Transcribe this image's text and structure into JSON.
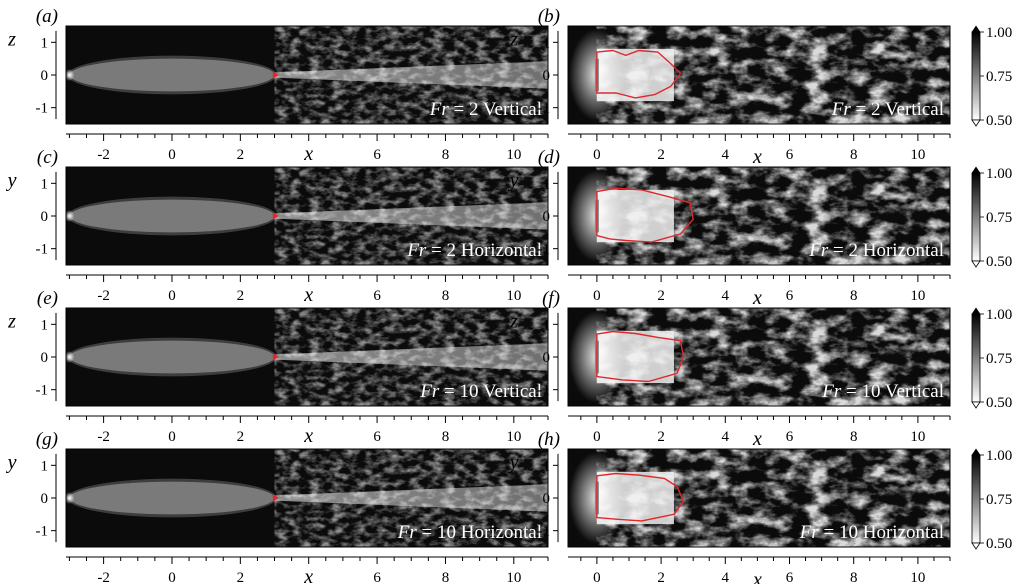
{
  "figure": {
    "panels": [
      {
        "letter": "(a)",
        "view": "wide",
        "vaxis": "z",
        "label_prefix": "Fr",
        "label_rest": " = 2 Vertical"
      },
      {
        "letter": "(b)",
        "view": "zoom",
        "vaxis": "z",
        "label_prefix": "Fr",
        "label_rest": " = 2 Vertical"
      },
      {
        "letter": "(c)",
        "view": "wide",
        "vaxis": "y",
        "label_prefix": "Fr",
        "label_rest": " = 2 Horizontal"
      },
      {
        "letter": "(d)",
        "view": "zoom",
        "vaxis": "y",
        "label_prefix": "Fr",
        "label_rest": " = 2 Horizontal"
      },
      {
        "letter": "(e)",
        "view": "wide",
        "vaxis": "z",
        "label_prefix": "Fr",
        "label_rest": " = 10 Vertical"
      },
      {
        "letter": "(f)",
        "view": "zoom",
        "vaxis": "z",
        "label_prefix": "Fr",
        "label_rest": " = 10 Vertical"
      },
      {
        "letter": "(g)",
        "view": "wide",
        "vaxis": "y",
        "label_prefix": "Fr",
        "label_rest": " = 10 Horizontal"
      },
      {
        "letter": "(h)",
        "view": "zoom",
        "vaxis": "y",
        "label_prefix": "Fr",
        "label_rest": " = 10 Horizontal"
      }
    ],
    "xlabel": "x",
    "yticks": [
      "1",
      "0",
      "-1"
    ],
    "wide_xticks": [
      "-2",
      "0",
      "2",
      "4",
      "6",
      "8",
      "10"
    ],
    "wide_xlabel_replaces": "4",
    "zoom_xticks": [
      "0",
      "2",
      "4",
      "6",
      "8",
      "10"
    ],
    "colorbar_ticks": [
      "1.00",
      "0.75",
      "0.50"
    ]
  },
  "colors": {
    "background": "#0b0b0b",
    "body": "#7a7a7a",
    "contour": "#e0282c",
    "wake": "#e6e6e6"
  }
}
